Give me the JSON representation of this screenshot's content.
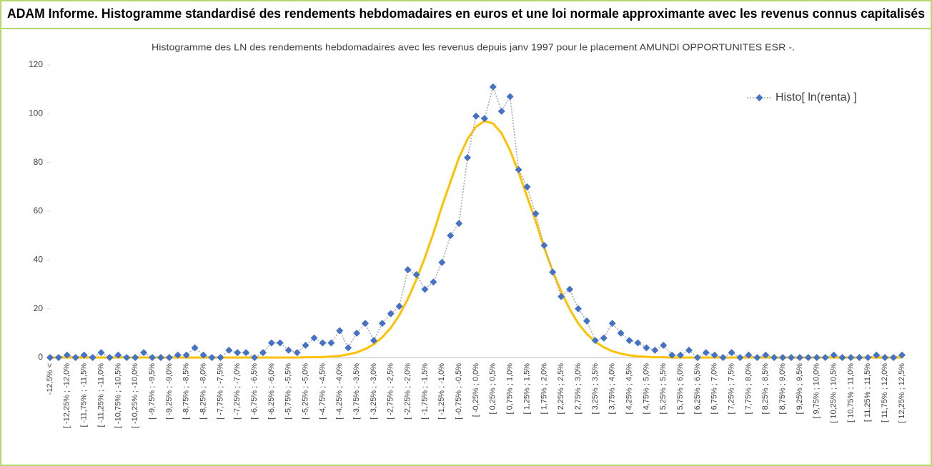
{
  "header": {
    "title": "ADAM Informe. Histogramme standardisé des rendements hebdomadaires en euros et une loi normale approximante avec les revenus connus capitalisés"
  },
  "chart_data": {
    "type": "line",
    "title": "Histogramme  des LN des rendements hebdomadaires avec les revenus depuis janv 1997 pour le placement AMUNDI OPPORTUNITES ESR -.",
    "categories": [
      "-12,5% <",
      null,
      "[ -12,25% ; -12,0%",
      null,
      "[ -11,75% ; -11,5%",
      null,
      "[ -11,25% ; -11,0%",
      null,
      "[ -10,75% ; -10,5%",
      null,
      "[ -10,25% ; -10,0%",
      null,
      "[ -9,75% ; -9,5%",
      null,
      "[ -9,25% ; -9,0%",
      null,
      "[ -8,75% ; -8,5%",
      null,
      "[ -8,25% ; -8,0%",
      null,
      "[ -7,75% ; -7,5%",
      null,
      "[ -7,25% ; -7,0%",
      null,
      "[ -6,75% ; -6,5%",
      null,
      "[ -6,25% ; -6,0%",
      null,
      "[ -5,75% ; -5,5%",
      null,
      "[ -5,25% ; -5,0%",
      null,
      "[ -4,75% ; -4,5%",
      null,
      "[ -4,25% ; -4,0%",
      null,
      "[ -3,75% ; -3,5%",
      null,
      "[ -3,25% ; -3,0%",
      null,
      "[ -2,75% ; -2,5%",
      null,
      "[ -2,25% ; -2,0%",
      null,
      "[ -1,75% ; -1,5%",
      null,
      "[ -1,25% ; -1,0%",
      null,
      "[ -0,75% ; -0,5%",
      null,
      "[ -0,25% ; 0,0%",
      null,
      "[ 0,25% ; 0,5%",
      null,
      "[ 0,75% ; 1,0%",
      null,
      "[ 1,25% ; 1,5%",
      null,
      "[ 1,75% ; 2,0%",
      null,
      "[ 2,25% ; 2,5%",
      null,
      "[ 2,75% ; 3,0%",
      null,
      "[ 3,25% ; 3,5%",
      null,
      "[ 3,75% ; 4,0%",
      null,
      "[ 4,25% ; 4,5%",
      null,
      "[ 4,75% ; 5,0%",
      null,
      "[ 5,25% ; 5,5%",
      null,
      "[ 5,75% ; 6,0%",
      null,
      "[ 6,25% ; 6,5%",
      null,
      "[ 6,75% ; 7,0%",
      null,
      "[ 7,25% ; 7,5%",
      null,
      "[ 7,75% ; 8,0%",
      null,
      "[ 8,25% ; 8,5%",
      null,
      "[ 8,75% ; 9,0%",
      null,
      "[ 9,25% ; 9,5%",
      null,
      "[ 9,75% ; 10,0%",
      null,
      "[ 10,25% ; 10,5%",
      null,
      "[ 10,75% ; 11,0%",
      null,
      "[ 11,25% ; 11,5%",
      null,
      "[ 11,75% ; 12,0%",
      null,
      "[ 12,25% ; 12,5%"
    ],
    "series": [
      {
        "name": "Histo[ ln(renta) ]",
        "color": "#4472c4",
        "line_color": "#a6a6a6",
        "values": [
          0,
          0,
          1,
          0,
          1,
          0,
          2,
          0,
          1,
          0,
          0,
          2,
          0,
          0,
          0,
          1,
          1,
          4,
          1,
          0,
          0,
          3,
          2,
          2,
          0,
          2,
          6,
          6,
          3,
          2,
          5,
          8,
          6,
          6,
          11,
          4,
          10,
          14,
          7,
          14,
          18,
          21,
          36,
          34,
          28,
          31,
          39,
          50,
          55,
          82,
          99,
          98,
          111,
          101,
          107,
          77,
          70,
          59,
          46,
          35,
          25,
          28,
          20,
          15,
          7,
          8,
          14,
          10,
          7,
          6,
          4,
          3,
          5,
          1,
          1,
          3,
          0,
          2,
          1,
          0,
          2,
          0,
          1,
          0,
          1,
          0,
          0,
          0,
          0,
          0,
          0,
          0,
          1,
          0,
          0,
          0,
          0,
          1,
          0,
          0,
          1
        ]
      },
      {
        "color": "#ffc000",
        "values": [
          0,
          0,
          0,
          0,
          0,
          0,
          0,
          0,
          0,
          0,
          0,
          0,
          0,
          0,
          0,
          0,
          0,
          0,
          0,
          0,
          0,
          0,
          0,
          0,
          0,
          0,
          0,
          0,
          0,
          0,
          0.1,
          0.1,
          0.2,
          0.4,
          0.7,
          1.3,
          2.1,
          3.5,
          5.4,
          8.3,
          12.2,
          17.4,
          24,
          32,
          41,
          51,
          62,
          72,
          82,
          89.5,
          94.7,
          97,
          96,
          92,
          85,
          76,
          66,
          56,
          45,
          35.5,
          27,
          19.8,
          14,
          9.7,
          6.5,
          4.2,
          2.6,
          1.6,
          0.9,
          0.5,
          0.3,
          0.1,
          0.1,
          0,
          0,
          0,
          0,
          0,
          0,
          0,
          0,
          0,
          0,
          0,
          0,
          0,
          0,
          0,
          0,
          0,
          0,
          0,
          0,
          0,
          0,
          0,
          0,
          0,
          0,
          0,
          0
        ]
      }
    ],
    "ylim": [
      0,
      120
    ],
    "yticks": [
      0,
      20,
      40,
      60,
      80,
      100,
      120
    ],
    "legend": "top-right"
  }
}
